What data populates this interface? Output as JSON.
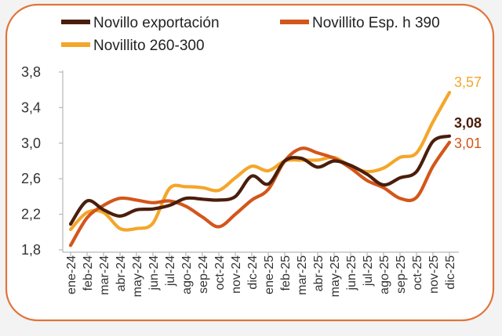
{
  "chart_data": {
    "type": "line",
    "categories": [
      "ene-24",
      "feb-24",
      "mar-24",
      "abr-24",
      "may-24",
      "jun-24",
      "jul-24",
      "ago-24",
      "sep-24",
      "oct-24",
      "nov-24",
      "dic-24",
      "ene-25",
      "feb-25",
      "mar-25",
      "abr-25",
      "may-25",
      "jun-25",
      "jul-25",
      "ago-25",
      "sep-25",
      "oct-25",
      "nov-25",
      "dic-25"
    ],
    "ylim": [
      1.8,
      3.8
    ],
    "yticks": [
      "1,8",
      "2,2",
      "2,6",
      "3,0",
      "3,4",
      "3,8"
    ],
    "grid": false,
    "legend_position": "top",
    "series": [
      {
        "name": "Novillo exportación",
        "color": "#4a1e0c",
        "values": [
          2.09,
          2.35,
          2.25,
          2.18,
          2.25,
          2.26,
          2.3,
          2.38,
          2.37,
          2.36,
          2.4,
          2.63,
          2.54,
          2.8,
          2.83,
          2.73,
          2.8,
          2.75,
          2.65,
          2.53,
          2.61,
          2.68,
          3.02,
          3.08
        ],
        "end_label": "3,08"
      },
      {
        "name": "Novillito Esp. h 390",
        "color": "#d3561b",
        "values": [
          1.85,
          2.16,
          2.3,
          2.38,
          2.36,
          2.33,
          2.35,
          2.29,
          2.17,
          2.06,
          2.2,
          2.36,
          2.48,
          2.8,
          2.94,
          2.89,
          2.83,
          2.72,
          2.58,
          2.5,
          2.38,
          2.39,
          2.74,
          3.01
        ],
        "end_label": "3,01"
      },
      {
        "name": "Novillito 260-300",
        "color": "#f4a62a",
        "values": [
          2.03,
          2.22,
          2.22,
          2.04,
          2.04,
          2.1,
          2.49,
          2.51,
          2.5,
          2.47,
          2.61,
          2.74,
          2.69,
          2.8,
          2.81,
          2.81,
          2.84,
          2.74,
          2.68,
          2.72,
          2.84,
          2.89,
          3.24,
          3.57
        ],
        "end_label": "3,57"
      }
    ]
  }
}
